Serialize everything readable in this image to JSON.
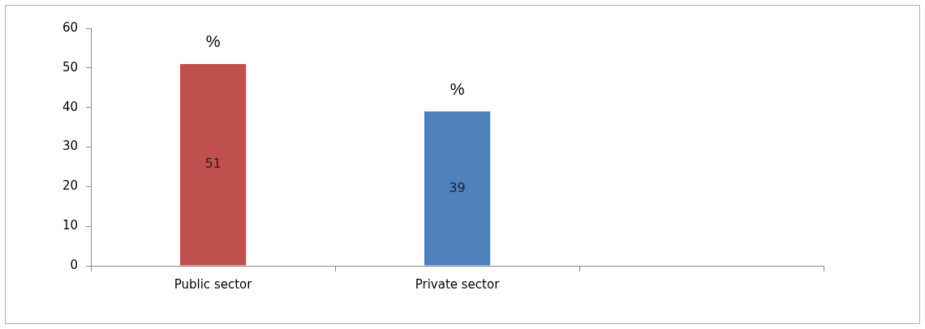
{
  "chart_data": {
    "type": "bar",
    "categories": [
      "Public sector",
      "Private sector",
      null
    ],
    "values": [
      51,
      39,
      null
    ],
    "colors": [
      "#c0504d",
      "#4f81bd",
      "#4f81bd"
    ],
    "ylim": [
      0,
      60
    ],
    "yticks": [
      0,
      10,
      20,
      30,
      40,
      50,
      60
    ],
    "grid": false,
    "legend": false,
    "data_labels": true,
    "annotations": [
      {
        "text": "%",
        "x": "Public sector",
        "y": 51
      },
      {
        "text": "%",
        "x": "Private sector",
        "y": 39
      }
    ]
  }
}
